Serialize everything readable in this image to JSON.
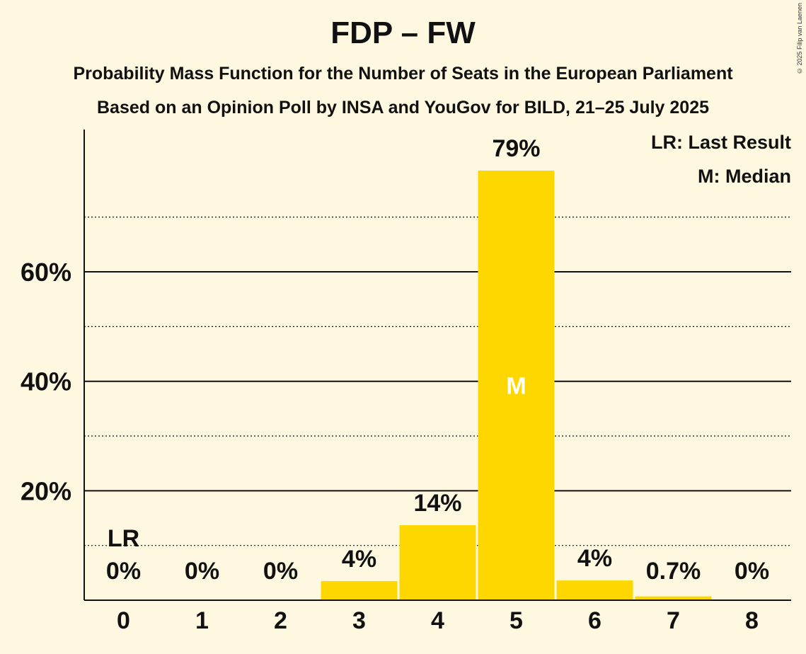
{
  "chart_data": {
    "type": "bar",
    "title": "FDP – FW",
    "subtitle": "Probability Mass Function for the Number of Seats in the European Parliament",
    "subtitle2": "Based on an Opinion Poll by INSA and YouGov for BILD, 21–25 July 2025",
    "categories": [
      "0",
      "1",
      "2",
      "3",
      "4",
      "5",
      "6",
      "7",
      "8"
    ],
    "values": [
      0,
      0,
      0,
      3.5,
      13.7,
      78.5,
      3.6,
      0.7,
      0
    ],
    "value_labels": [
      "0%",
      "0%",
      "0%",
      "4%",
      "14%",
      "79%",
      "4%",
      "0.7%",
      "0%"
    ],
    "ylim": [
      0,
      86
    ],
    "y_ticks": [
      20,
      40,
      60
    ],
    "y_tick_labels": [
      "20%",
      "40%",
      "60%"
    ],
    "y_minor_gridlines": [
      10,
      30,
      50,
      70
    ],
    "bar_color": "#ffd700",
    "last_result_index": 0,
    "last_result_label": "LR",
    "median_index": 5,
    "median_label": "M",
    "legend": [
      "LR: Last Result",
      "M: Median"
    ],
    "legend_position": "top-right"
  },
  "copyright": "© 2025 Filip van Laenen"
}
